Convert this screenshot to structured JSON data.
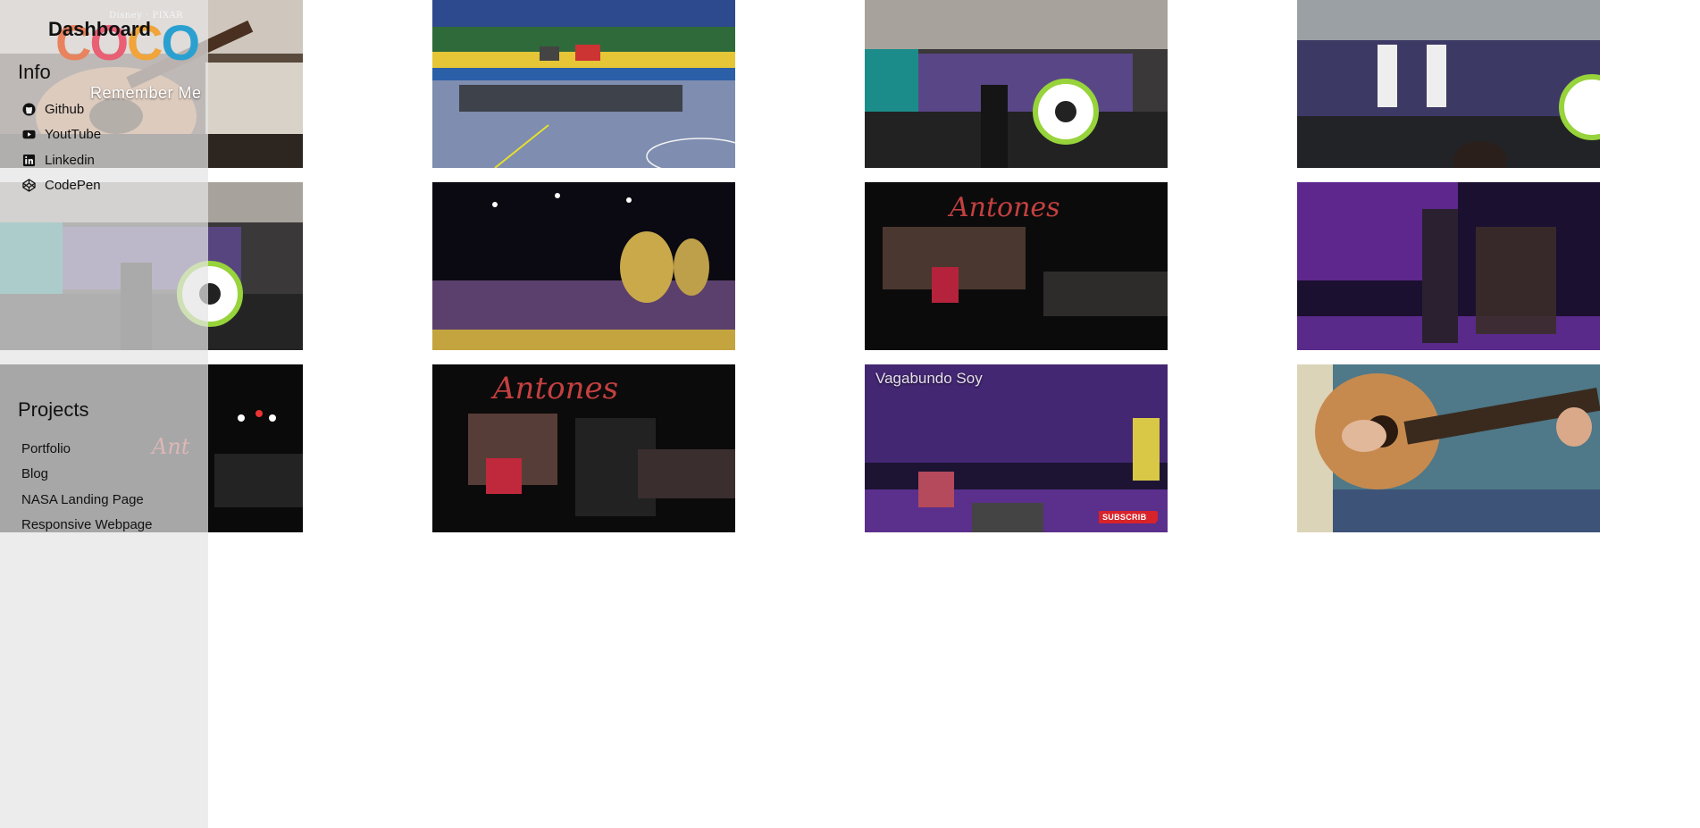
{
  "sidebar": {
    "title": "Dashboard",
    "logo": {
      "brand": "Disney · PIXAR",
      "word": "COCO",
      "tagline": "Remember Me"
    },
    "info": {
      "title": "Info",
      "links": [
        {
          "label": "Github",
          "icon": "github-icon"
        },
        {
          "label": "YoutTube",
          "icon": "youtube-icon"
        },
        {
          "label": "Linkedin",
          "icon": "linkedin-icon"
        },
        {
          "label": "CodePen",
          "icon": "codepen-icon"
        }
      ]
    },
    "projects": {
      "title": "Projects",
      "links": [
        {
          "label": "Portfolio"
        },
        {
          "label": "Blog"
        },
        {
          "label": "NASA Landing Page"
        },
        {
          "label": "Responsive Webpage"
        }
      ]
    }
  },
  "videos": {
    "tile_9": {
      "caption": "Vagabundo Soy",
      "subscribe": "SUBSCRIBE"
    }
  },
  "colors": {
    "sidebar_bg": "#e4e4e4",
    "stage_purple": "#6a2c9e",
    "stage_dark": "#0b0a10",
    "subscribe_red": "#d8232a"
  }
}
